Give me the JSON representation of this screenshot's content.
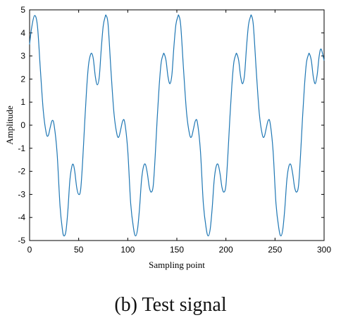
{
  "chart_data": {
    "type": "line",
    "title": "",
    "xlabel": "Sampling point",
    "ylabel": "Amplitude",
    "xlim": [
      0,
      300
    ],
    "ylim": [
      -5,
      5
    ],
    "xticks": [
      0,
      50,
      100,
      150,
      200,
      250,
      300
    ],
    "yticks": [
      -5,
      -4,
      -3,
      -2,
      -1,
      0,
      1,
      2,
      3,
      4,
      5
    ],
    "grid": false,
    "period": 75,
    "series": [
      {
        "color": "#1f77b4",
        "points": [
          [
            0,
            3.5
          ],
          [
            2,
            4.2
          ],
          [
            5,
            4.75
          ],
          [
            8,
            4.3
          ],
          [
            11,
            2.4
          ],
          [
            14,
            0.6
          ],
          [
            17,
            -0.35
          ],
          [
            19,
            -0.45
          ],
          [
            21,
            -0.1
          ],
          [
            23,
            0.2
          ],
          [
            25,
            0.0
          ],
          [
            28,
            -1.2
          ],
          [
            31,
            -3.5
          ],
          [
            33.5,
            -4.55
          ],
          [
            35,
            -4.8
          ],
          [
            37,
            -4.6
          ],
          [
            39,
            -3.7
          ],
          [
            41,
            -2.4
          ],
          [
            43,
            -1.8
          ],
          [
            44.5,
            -1.7
          ],
          [
            46,
            -2.0
          ],
          [
            48,
            -2.7
          ],
          [
            50,
            -3.0
          ],
          [
            52,
            -2.8
          ],
          [
            54,
            -1.6
          ],
          [
            56,
            0.0
          ],
          [
            58,
            1.5
          ],
          [
            60,
            2.6
          ],
          [
            62,
            3.05
          ],
          [
            63.5,
            3.1
          ],
          [
            65,
            2.85
          ],
          [
            67,
            2.1
          ],
          [
            69,
            1.75
          ],
          [
            71,
            2.1
          ],
          [
            73,
            3.3
          ],
          [
            75,
            4.3
          ],
          [
            77,
            4.7
          ],
          [
            78,
            4.75
          ],
          [
            80,
            4.35
          ],
          [
            83,
            2.3
          ],
          [
            86,
            0.5
          ],
          [
            89,
            -0.4
          ],
          [
            91,
            -0.5
          ],
          [
            93,
            -0.15
          ],
          [
            95,
            0.2
          ],
          [
            97,
            0.1
          ],
          [
            100,
            -1.1
          ],
          [
            103,
            -3.4
          ],
          [
            106,
            -4.5
          ],
          [
            108,
            -4.8
          ],
          [
            110,
            -4.5
          ],
          [
            112,
            -3.6
          ],
          [
            114,
            -2.4
          ],
          [
            116,
            -1.8
          ],
          [
            118,
            -1.7
          ],
          [
            120,
            -2.1
          ],
          [
            122,
            -2.7
          ],
          [
            124,
            -2.9
          ],
          [
            126,
            -2.6
          ],
          [
            128,
            -1.3
          ],
          [
            130,
            0.3
          ],
          [
            132,
            1.7
          ],
          [
            134,
            2.7
          ],
          [
            136,
            3.05
          ],
          [
            137,
            3.1
          ],
          [
            139,
            2.8
          ],
          [
            141,
            2.1
          ],
          [
            143,
            1.8
          ],
          [
            145,
            2.2
          ],
          [
            147,
            3.4
          ],
          [
            149,
            4.35
          ],
          [
            151,
            4.7
          ],
          [
            152,
            4.75
          ],
          [
            154,
            4.3
          ],
          [
            157,
            2.3
          ],
          [
            160,
            0.5
          ],
          [
            163,
            -0.4
          ],
          [
            165,
            -0.5
          ],
          [
            167,
            -0.15
          ],
          [
            169,
            0.2
          ],
          [
            171,
            0.1
          ],
          [
            174,
            -1.1
          ],
          [
            177,
            -3.4
          ],
          [
            180,
            -4.5
          ],
          [
            182,
            -4.8
          ],
          [
            184,
            -4.5
          ],
          [
            186,
            -3.6
          ],
          [
            188,
            -2.4
          ],
          [
            190,
            -1.8
          ],
          [
            192,
            -1.7
          ],
          [
            194,
            -2.1
          ],
          [
            196,
            -2.7
          ],
          [
            198,
            -2.9
          ],
          [
            200,
            -2.6
          ],
          [
            202,
            -1.3
          ],
          [
            204,
            0.3
          ],
          [
            206,
            1.7
          ],
          [
            208,
            2.7
          ],
          [
            210,
            3.05
          ],
          [
            211,
            3.1
          ],
          [
            213,
            2.8
          ],
          [
            215,
            2.1
          ],
          [
            217,
            1.8
          ],
          [
            219,
            2.2
          ],
          [
            221,
            3.4
          ],
          [
            223,
            4.35
          ],
          [
            225,
            4.7
          ],
          [
            226,
            4.75
          ],
          [
            228,
            4.3
          ],
          [
            231,
            2.3
          ],
          [
            234,
            0.5
          ],
          [
            237,
            -0.4
          ],
          [
            239,
            -0.5
          ],
          [
            241,
            -0.15
          ],
          [
            243,
            0.2
          ],
          [
            245,
            0.1
          ],
          [
            248,
            -1.1
          ],
          [
            251,
            -3.4
          ],
          [
            254,
            -4.5
          ],
          [
            256,
            -4.8
          ],
          [
            258,
            -4.5
          ],
          [
            260,
            -3.6
          ],
          [
            262,
            -2.4
          ],
          [
            264,
            -1.8
          ],
          [
            266,
            -1.7
          ],
          [
            268,
            -2.1
          ],
          [
            270,
            -2.7
          ],
          [
            272,
            -2.9
          ],
          [
            274,
            -2.6
          ],
          [
            276,
            -1.3
          ],
          [
            278,
            0.3
          ],
          [
            280,
            1.7
          ],
          [
            282,
            2.7
          ],
          [
            284,
            3.05
          ],
          [
            285,
            3.1
          ],
          [
            287,
            2.8
          ],
          [
            289,
            2.1
          ],
          [
            291,
            1.8
          ],
          [
            293,
            2.2
          ],
          [
            295,
            3.0
          ],
          [
            297,
            3.3
          ],
          [
            300,
            2.8
          ]
        ]
      }
    ]
  },
  "caption": "(b) Test signal"
}
